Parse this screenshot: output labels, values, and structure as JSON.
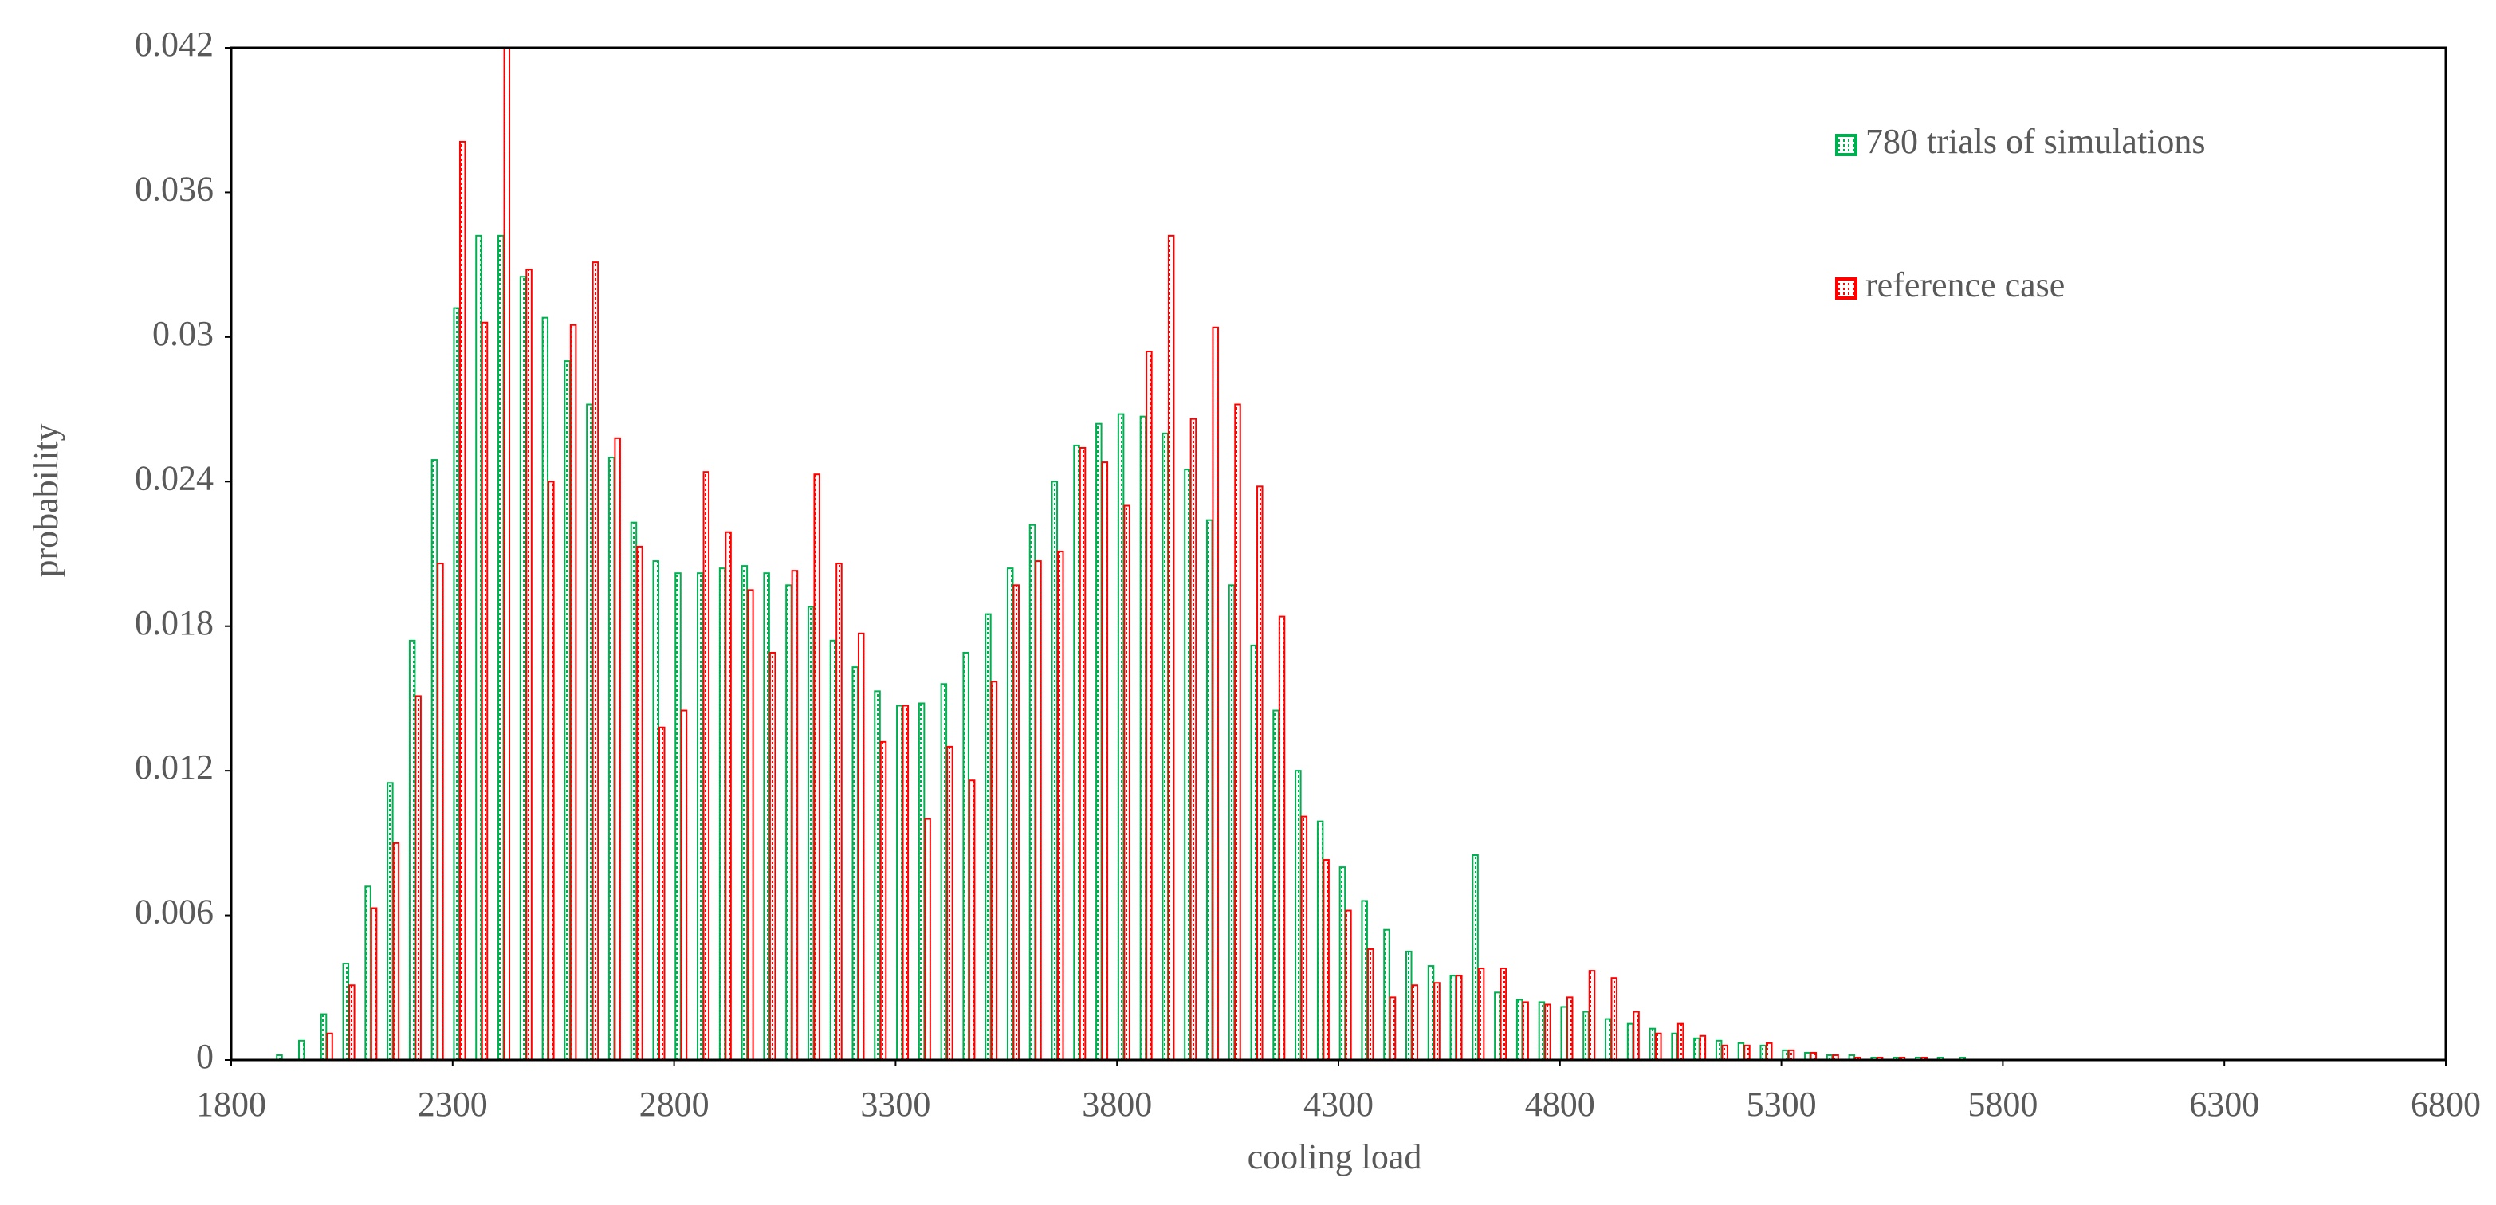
{
  "chart_data": {
    "type": "histogram",
    "xlabel": "cooling load",
    "ylabel": "probability",
    "bins": [
      1850,
      1900,
      1950,
      2000,
      2050,
      2100,
      2150,
      2200,
      2250,
      2300,
      2350,
      2400,
      2450,
      2500,
      2550,
      2600,
      2650,
      2700,
      2750,
      2800,
      2850,
      2900,
      2950,
      3000,
      3050,
      3100,
      3150,
      3200,
      3250,
      3300,
      3350,
      3400,
      3450,
      3500,
      3550,
      3600,
      3650,
      3700,
      3750,
      3800,
      3850,
      3900,
      3950,
      4000,
      4050,
      4100,
      4150,
      4200,
      4250,
      4300,
      4350,
      4400,
      4450,
      4500,
      4550,
      4600,
      4650,
      4700,
      4750,
      4800,
      4850,
      4900,
      4950,
      5000,
      5050,
      5100,
      5150,
      5200,
      5250,
      5300,
      5350,
      5400,
      5450,
      5500,
      5550,
      5600,
      5650,
      5700,
      5750,
      5800,
      5850,
      5900,
      5950,
      6000,
      6050,
      6100,
      6150,
      6200,
      6250,
      6300,
      6350,
      6400,
      6450,
      6500,
      6550,
      6600,
      6650,
      6700,
      6750,
      6800
    ],
    "series": [
      {
        "name": "780 trials of simulations",
        "color": "#00b050",
        "values": [
          0,
          0.0002,
          0.0008,
          0.0019,
          0.004,
          0.0072,
          0.0115,
          0.0174,
          0.0249,
          0.0312,
          0.0342,
          0.0342,
          0.0325,
          0.0308,
          0.029,
          0.0272,
          0.025,
          0.0223,
          0.0207,
          0.0202,
          0.0202,
          0.0204,
          0.0205,
          0.0202,
          0.0197,
          0.0188,
          0.0174,
          0.0163,
          0.0153,
          0.0147,
          0.0148,
          0.0156,
          0.0169,
          0.0185,
          0.0204,
          0.0222,
          0.024,
          0.0255,
          0.0264,
          0.0268,
          0.0267,
          0.026,
          0.0245,
          0.0224,
          0.0197,
          0.0172,
          0.0145,
          0.012,
          0.0099,
          0.008,
          0.0066,
          0.0054,
          0.0045,
          0.0039,
          0.0035,
          0.0085,
          0.0028,
          0.0025,
          0.0024,
          0.0022,
          0.002,
          0.0017,
          0.0015,
          0.0013,
          0.0011,
          0.0009,
          0.0008,
          0.0007,
          0.0006,
          0.0004,
          0.0003,
          0.0002,
          0.0002,
          0.0001,
          0.0001,
          0.0001,
          0.0001,
          0.0001,
          0,
          0,
          0,
          0,
          0,
          0,
          0,
          0,
          0,
          0,
          0,
          0,
          0,
          0,
          0,
          0,
          0,
          0,
          0,
          0,
          0
        ]
      },
      {
        "name": "reference case",
        "color": "#ff0000",
        "values": [
          0,
          0,
          0,
          0.0011,
          0.0031,
          0.0063,
          0.009,
          0.0151,
          0.0206,
          0.0381,
          0.0306,
          0.042,
          0.0328,
          0.024,
          0.0305,
          0.0331,
          0.0258,
          0.0213,
          0.0138,
          0.0145,
          0.0244,
          0.0219,
          0.0195,
          0.0169,
          0.0203,
          0.0243,
          0.0206,
          0.0177,
          0.0132,
          0.0147,
          0.01,
          0.013,
          0.0116,
          0.0157,
          0.0197,
          0.0207,
          0.0211,
          0.0254,
          0.0248,
          0.023,
          0.0294,
          0.0342,
          0.0266,
          0.0304,
          0.0272,
          0.0238,
          0.0184,
          0.0101,
          0.0083,
          0.0062,
          0.0046,
          0.0026,
          0.0031,
          0.0032,
          0.0035,
          0.0038,
          0.0038,
          0.0024,
          0.0023,
          0.0026,
          0.0037,
          0.0034,
          0.002,
          0.0011,
          0.0015,
          0.001,
          0.0006,
          0.0006,
          0.0007,
          0.0004,
          0.0003,
          0.0002,
          0.0001,
          0.0001,
          0.0001,
          0.0001,
          0,
          0,
          0,
          0,
          0,
          0,
          0,
          0,
          0,
          0,
          0,
          0,
          0,
          0,
          0,
          0,
          0,
          0,
          0,
          0,
          0,
          0,
          0
        ]
      }
    ],
    "xlim": [
      1800,
      6800
    ],
    "xticks": [
      1800,
      2300,
      2800,
      3300,
      3800,
      4300,
      4800,
      5300,
      5800,
      6300,
      6800
    ],
    "ylim": [
      0,
      0.042
    ],
    "yticks": [
      0,
      0.006,
      0.012,
      0.018,
      0.024,
      0.03,
      0.036,
      0.042
    ],
    "legend": "upper right"
  }
}
